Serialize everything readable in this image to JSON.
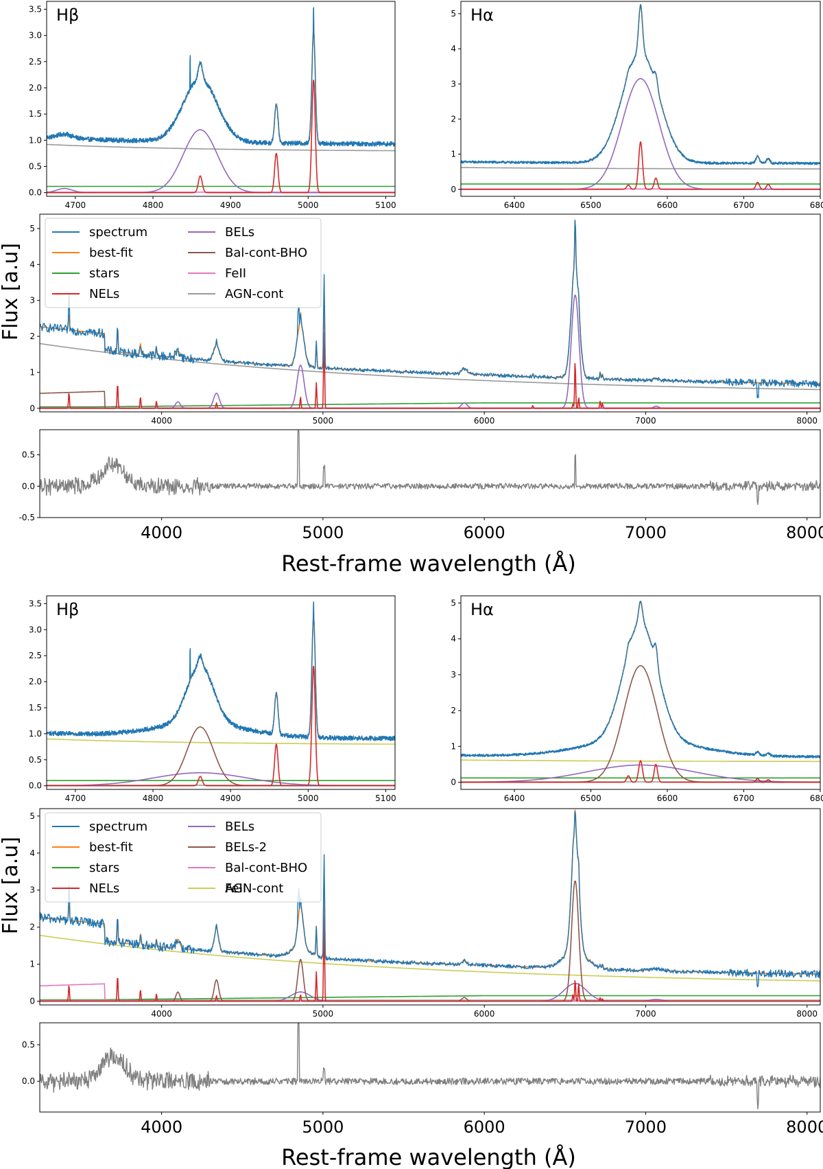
{
  "figure": {
    "xlabel": "Rest-frame wavelength (Å)",
    "ylabel": "Flux [a.u]"
  },
  "colors": {
    "spectrum": "#1f77b4",
    "bestfit": "#ff7f0e",
    "stars": "#2ca02c",
    "nels": "#d62728",
    "bels": "#9467bd",
    "bels2": "#8c564b",
    "feii_pink": "#e377c2",
    "grey": "#9a9a9a",
    "agn_olive": "#cccc55",
    "residual": "#808080"
  },
  "chart_data": [
    {
      "id": "top-hbeta",
      "type": "line",
      "title": "Hβ",
      "xlim": [
        4663,
        5112
      ],
      "ylim": [
        -0.07,
        3.65
      ],
      "xticks": [
        4700,
        4800,
        4900,
        5000,
        5100
      ],
      "yticks": [
        0.0,
        0.5,
        1.0,
        1.5,
        2.0,
        2.5,
        3.0,
        3.5
      ],
      "series": [
        {
          "name": "AGN-cont",
          "kind": "agn",
          "color": "#9a9a9a",
          "start": 0.92,
          "end": 0.8
        },
        {
          "name": "stars",
          "kind": "flat",
          "color": "#2ca02c",
          "level": 0.12
        },
        {
          "name": "FeII",
          "kind": "flat",
          "color": "#e377c2",
          "level": 0.01
        },
        {
          "name": "BELs",
          "kind": "gauss",
          "color": "#9467bd",
          "lines": [
            {
              "c": 4861,
              "a": 1.2,
              "w": 22
            },
            {
              "c": 4686,
              "a": 0.08,
              "w": 10
            }
          ]
        },
        {
          "name": "NELs",
          "kind": "gauss",
          "color": "#d62728",
          "lines": [
            {
              "c": 4861,
              "a": 0.32,
              "w": 2.5
            },
            {
              "c": 4959,
              "a": 0.75,
              "w": 2.2
            },
            {
              "c": 5007,
              "a": 2.15,
              "w": 2.2
            }
          ]
        },
        {
          "name": "best-fit",
          "kind": "model",
          "color": "#ff7f0e"
        },
        {
          "name": "spectrum",
          "kind": "spectrum",
          "color": "#1f77b4",
          "noise": 0.045,
          "spikes": [
            {
              "x": 4848,
              "a": 0.6
            },
            {
              "x": 5007,
              "a": 0.45
            }
          ]
        }
      ]
    },
    {
      "id": "top-halpha",
      "type": "line",
      "title": "Hα",
      "xlim": [
        6330,
        6800
      ],
      "ylim": [
        -0.2,
        5.35
      ],
      "xticks": [
        6400,
        6500,
        6600,
        6700,
        6800
      ],
      "yticks": [
        0,
        1,
        2,
        3,
        4,
        5
      ],
      "series": [
        {
          "name": "AGN-cont",
          "kind": "agn",
          "color": "#9a9a9a",
          "start": 0.62,
          "end": 0.58
        },
        {
          "name": "stars",
          "kind": "flat",
          "color": "#2ca02c",
          "level": 0.15
        },
        {
          "name": "FeII",
          "kind": "flat",
          "color": "#e377c2",
          "level": 0.01
        },
        {
          "name": "BELs",
          "kind": "gauss",
          "color": "#9467bd",
          "lines": [
            {
              "c": 6565,
              "a": 3.15,
              "w": 24
            }
          ]
        },
        {
          "name": "NELs",
          "kind": "gauss",
          "color": "#d62728",
          "lines": [
            {
              "c": 6565,
              "a": 1.35,
              "w": 2.5
            },
            {
              "c": 6549,
              "a": 0.12,
              "w": 2.2
            },
            {
              "c": 6585,
              "a": 0.32,
              "w": 2.2
            },
            {
              "c": 6718,
              "a": 0.2,
              "w": 2.2
            },
            {
              "c": 6732,
              "a": 0.14,
              "w": 2.2
            }
          ]
        },
        {
          "name": "best-fit",
          "kind": "model",
          "color": "#ff7f0e"
        },
        {
          "name": "spectrum",
          "kind": "spectrum",
          "color": "#1f77b4",
          "noise": 0.035,
          "spikes": []
        }
      ]
    },
    {
      "id": "top-full",
      "type": "line",
      "xlim": [
        3245,
        8082
      ],
      "ylim": [
        -0.1,
        5.4
      ],
      "xticks": [
        4000,
        5000,
        6000,
        7000,
        8000
      ],
      "yticks": [
        0,
        1,
        2,
        3,
        4,
        5
      ],
      "legend": [
        "spectrum",
        "best-fit",
        "stars",
        "NELs",
        "BELs",
        "Bal-cont-BHO",
        "FeII",
        "AGN-cont"
      ],
      "series": [
        {
          "name": "AGN-cont",
          "kind": "agn",
          "color": "#9a9a9a",
          "start": 1.8,
          "end": 0.52
        },
        {
          "name": "stars",
          "kind": "stars",
          "color": "#2ca02c"
        },
        {
          "name": "FeII",
          "kind": "flat",
          "color": "#e377c2",
          "level": 0.01
        },
        {
          "name": "Bal-cont-BHO",
          "kind": "balmer",
          "color": "#8c564b",
          "level": 0.47
        },
        {
          "name": "BELs",
          "kind": "gauss",
          "color": "#9467bd",
          "lines": [
            {
              "c": 6563,
              "a": 3.15,
              "w": 24
            },
            {
              "c": 4861,
              "a": 1.2,
              "w": 22
            },
            {
              "c": 4340,
              "a": 0.42,
              "w": 18
            },
            {
              "c": 4101,
              "a": 0.18,
              "w": 15
            },
            {
              "c": 5876,
              "a": 0.15,
              "w": 18
            },
            {
              "c": 7065,
              "a": 0.06,
              "w": 15
            }
          ]
        },
        {
          "name": "NELs",
          "kind": "gauss",
          "color": "#d62728",
          "lines": [
            {
              "c": 6563,
              "a": 1.35,
              "w": 3
            },
            {
              "c": 6585,
              "a": 0.3,
              "w": 3
            },
            {
              "c": 6549,
              "a": 0.12,
              "w": 3
            },
            {
              "c": 5007,
              "a": 2.1,
              "w": 3
            },
            {
              "c": 4959,
              "a": 0.72,
              "w": 3
            },
            {
              "c": 4861,
              "a": 0.32,
              "w": 3
            },
            {
              "c": 3727,
              "a": 0.72,
              "w": 3
            },
            {
              "c": 3869,
              "a": 0.32,
              "w": 3
            },
            {
              "c": 3426,
              "a": 0.45,
              "w": 3
            },
            {
              "c": 3968,
              "a": 0.2,
              "w": 3
            },
            {
              "c": 4340,
              "a": 0.15,
              "w": 3
            },
            {
              "c": 6300,
              "a": 0.08,
              "w": 3
            },
            {
              "c": 6718,
              "a": 0.2,
              "w": 3
            },
            {
              "c": 6732,
              "a": 0.14,
              "w": 3
            }
          ]
        },
        {
          "name": "best-fit",
          "kind": "model",
          "color": "#ff7f0e"
        },
        {
          "name": "spectrum",
          "kind": "spectrum",
          "color": "#1f77b4",
          "noise": 0.05,
          "spikes": [
            {
              "x": 3426,
              "a": 0.5
            },
            {
              "x": 4848,
              "a": 0.6
            },
            {
              "x": 5007,
              "a": 0.45
            },
            {
              "x": 7695,
              "a": -0.35
            }
          ]
        }
      ]
    },
    {
      "id": "top-residual",
      "type": "line",
      "xlim": [
        3245,
        8082
      ],
      "ylim": [
        -0.5,
        0.9
      ],
      "xticks": [
        4000,
        5000,
        6000,
        7000,
        8000
      ],
      "yticks": [
        -0.5,
        0.0,
        0.5
      ],
      "series": [
        {
          "name": "residual",
          "kind": "residual",
          "color": "#808080",
          "spikes": [
            {
              "x": 4848,
              "a": 0.85
            },
            {
              "x": 5007,
              "a": 0.3
            },
            {
              "x": 6563,
              "a": 0.5
            },
            {
              "x": 7695,
              "a": -0.25
            }
          ]
        }
      ]
    },
    {
      "id": "bottom-hbeta",
      "type": "line",
      "title": "Hβ",
      "xlim": [
        4663,
        5112
      ],
      "ylim": [
        -0.07,
        3.65
      ],
      "xticks": [
        4700,
        4800,
        4900,
        5000,
        5100
      ],
      "yticks": [
        0.0,
        0.5,
        1.0,
        1.5,
        2.0,
        2.5,
        3.0,
        3.5
      ],
      "series": [
        {
          "name": "AGN-cont",
          "kind": "agn",
          "color": "#cccc55",
          "start": 0.9,
          "end": 0.8
        },
        {
          "name": "stars",
          "kind": "flat",
          "color": "#2ca02c",
          "level": 0.1
        },
        {
          "name": "FeII",
          "kind": "flat",
          "color": "#9a9a9a",
          "level": 0.01
        },
        {
          "name": "BELs",
          "kind": "gauss",
          "color": "#9467bd",
          "lines": [
            {
              "c": 4861,
              "a": 0.25,
              "w": 60
            }
          ]
        },
        {
          "name": "BELs-2",
          "kind": "gauss",
          "color": "#8c564b",
          "lines": [
            {
              "c": 4861,
              "a": 1.13,
              "w": 17
            }
          ]
        },
        {
          "name": "NELs",
          "kind": "gauss",
          "color": "#d62728",
          "lines": [
            {
              "c": 4861,
              "a": 0.18,
              "w": 2.5
            },
            {
              "c": 4959,
              "a": 0.8,
              "w": 2.2
            },
            {
              "c": 5007,
              "a": 2.3,
              "w": 2.2
            }
          ]
        },
        {
          "name": "best-fit",
          "kind": "model",
          "color": "#ff7f0e"
        },
        {
          "name": "spectrum",
          "kind": "spectrum",
          "color": "#1f77b4",
          "noise": 0.045,
          "spikes": [
            {
              "x": 4848,
              "a": 0.6
            },
            {
              "x": 5007,
              "a": 0.3
            }
          ]
        }
      ]
    },
    {
      "id": "bottom-halpha",
      "type": "line",
      "title": "Hα",
      "xlim": [
        6330,
        6800
      ],
      "ylim": [
        -0.2,
        5.2
      ],
      "xticks": [
        6400,
        6500,
        6600,
        6700,
        6800
      ],
      "yticks": [
        0,
        1,
        2,
        3,
        4,
        5
      ],
      "series": [
        {
          "name": "AGN-cont",
          "kind": "agn",
          "color": "#cccc55",
          "start": 0.62,
          "end": 0.58
        },
        {
          "name": "stars",
          "kind": "flat",
          "color": "#2ca02c",
          "level": 0.12
        },
        {
          "name": "FeII",
          "kind": "flat",
          "color": "#9a9a9a",
          "level": 0.01
        },
        {
          "name": "BELs",
          "kind": "gauss",
          "color": "#9467bd",
          "lines": [
            {
              "c": 6565,
              "a": 0.48,
              "w": 70
            }
          ]
        },
        {
          "name": "BELs-2",
          "kind": "gauss",
          "color": "#8c564b",
          "lines": [
            {
              "c": 6565,
              "a": 3.25,
              "w": 22
            }
          ]
        },
        {
          "name": "NELs",
          "kind": "gauss",
          "color": "#d62728",
          "lines": [
            {
              "c": 6565,
              "a": 0.6,
              "w": 2.5
            },
            {
              "c": 6549,
              "a": 0.18,
              "w": 2.2
            },
            {
              "c": 6585,
              "a": 0.5,
              "w": 2.2
            },
            {
              "c": 6718,
              "a": 0.1,
              "w": 2.2
            },
            {
              "c": 6732,
              "a": 0.07,
              "w": 2.2
            }
          ]
        },
        {
          "name": "best-fit",
          "kind": "model",
          "color": "#ff7f0e"
        },
        {
          "name": "spectrum",
          "kind": "spectrum",
          "color": "#1f77b4",
          "noise": 0.035,
          "spikes": []
        }
      ]
    },
    {
      "id": "bottom-full",
      "type": "line",
      "xlim": [
        3245,
        8082
      ],
      "ylim": [
        -0.1,
        5.2
      ],
      "xticks": [
        4000,
        5000,
        6000,
        7000,
        8000
      ],
      "yticks": [
        0,
        1,
        2,
        3,
        4,
        5
      ],
      "legend": [
        "spectrum",
        "best-fit",
        "stars",
        "NELs",
        "BELs",
        "BELs-2",
        "Bal-cont-BHO",
        "FeII",
        "AGN-cont"
      ],
      "series": [
        {
          "name": "AGN-cont",
          "kind": "agn",
          "color": "#cccc55",
          "start": 1.78,
          "end": 0.55
        },
        {
          "name": "stars",
          "kind": "stars",
          "color": "#2ca02c"
        },
        {
          "name": "FeII",
          "kind": "flat",
          "color": "#9a9a9a",
          "level": 0.03
        },
        {
          "name": "Bal-cont-BHO",
          "kind": "balmer",
          "color": "#e377c2",
          "level": 0.47
        },
        {
          "name": "BELs",
          "kind": "gauss",
          "color": "#9467bd",
          "lines": [
            {
              "c": 6563,
              "a": 0.48,
              "w": 70
            },
            {
              "c": 4861,
              "a": 0.25,
              "w": 60
            },
            {
              "c": 7065,
              "a": 0.05,
              "w": 40
            }
          ]
        },
        {
          "name": "BELs-2",
          "kind": "gauss",
          "color": "#8c564b",
          "lines": [
            {
              "c": 6563,
              "a": 3.25,
              "w": 22
            },
            {
              "c": 4861,
              "a": 1.13,
              "w": 17
            },
            {
              "c": 4340,
              "a": 0.58,
              "w": 14
            },
            {
              "c": 4101,
              "a": 0.25,
              "w": 12
            },
            {
              "c": 5876,
              "a": 0.1,
              "w": 15
            }
          ]
        },
        {
          "name": "NELs",
          "kind": "gauss",
          "color": "#d62728",
          "lines": [
            {
              "c": 6563,
              "a": 0.6,
              "w": 3
            },
            {
              "c": 6585,
              "a": 0.5,
              "w": 3
            },
            {
              "c": 6549,
              "a": 0.18,
              "w": 3
            },
            {
              "c": 5007,
              "a": 2.3,
              "w": 3
            },
            {
              "c": 4959,
              "a": 0.8,
              "w": 3
            },
            {
              "c": 4861,
              "a": 0.18,
              "w": 3
            },
            {
              "c": 3727,
              "a": 0.72,
              "w": 3
            },
            {
              "c": 3869,
              "a": 0.32,
              "w": 3
            },
            {
              "c": 3426,
              "a": 0.45,
              "w": 3
            },
            {
              "c": 3968,
              "a": 0.2,
              "w": 3
            },
            {
              "c": 4340,
              "a": 0.15,
              "w": 3
            },
            {
              "c": 6718,
              "a": 0.1,
              "w": 3
            },
            {
              "c": 6732,
              "a": 0.07,
              "w": 3
            }
          ]
        },
        {
          "name": "best-fit",
          "kind": "model",
          "color": "#ff7f0e"
        },
        {
          "name": "spectrum",
          "kind": "spectrum",
          "color": "#1f77b4",
          "noise": 0.05,
          "spikes": [
            {
              "x": 3426,
              "a": 0.5
            },
            {
              "x": 4848,
              "a": 0.6
            },
            {
              "x": 5007,
              "a": 0.45
            },
            {
              "x": 7695,
              "a": -0.35
            }
          ]
        }
      ]
    },
    {
      "id": "bottom-residual",
      "type": "line",
      "xlim": [
        3245,
        8082
      ],
      "ylim": [
        -0.42,
        0.8
      ],
      "xticks": [
        4000,
        5000,
        6000,
        7000,
        8000
      ],
      "yticks": [
        0.0,
        0.5
      ],
      "series": [
        {
          "name": "residual",
          "kind": "residual",
          "color": "#808080",
          "spikes": [
            {
              "x": 4848,
              "a": 0.78
            },
            {
              "x": 5007,
              "a": 0.2
            },
            {
              "x": 7695,
              "a": -0.3
            }
          ]
        }
      ]
    }
  ]
}
